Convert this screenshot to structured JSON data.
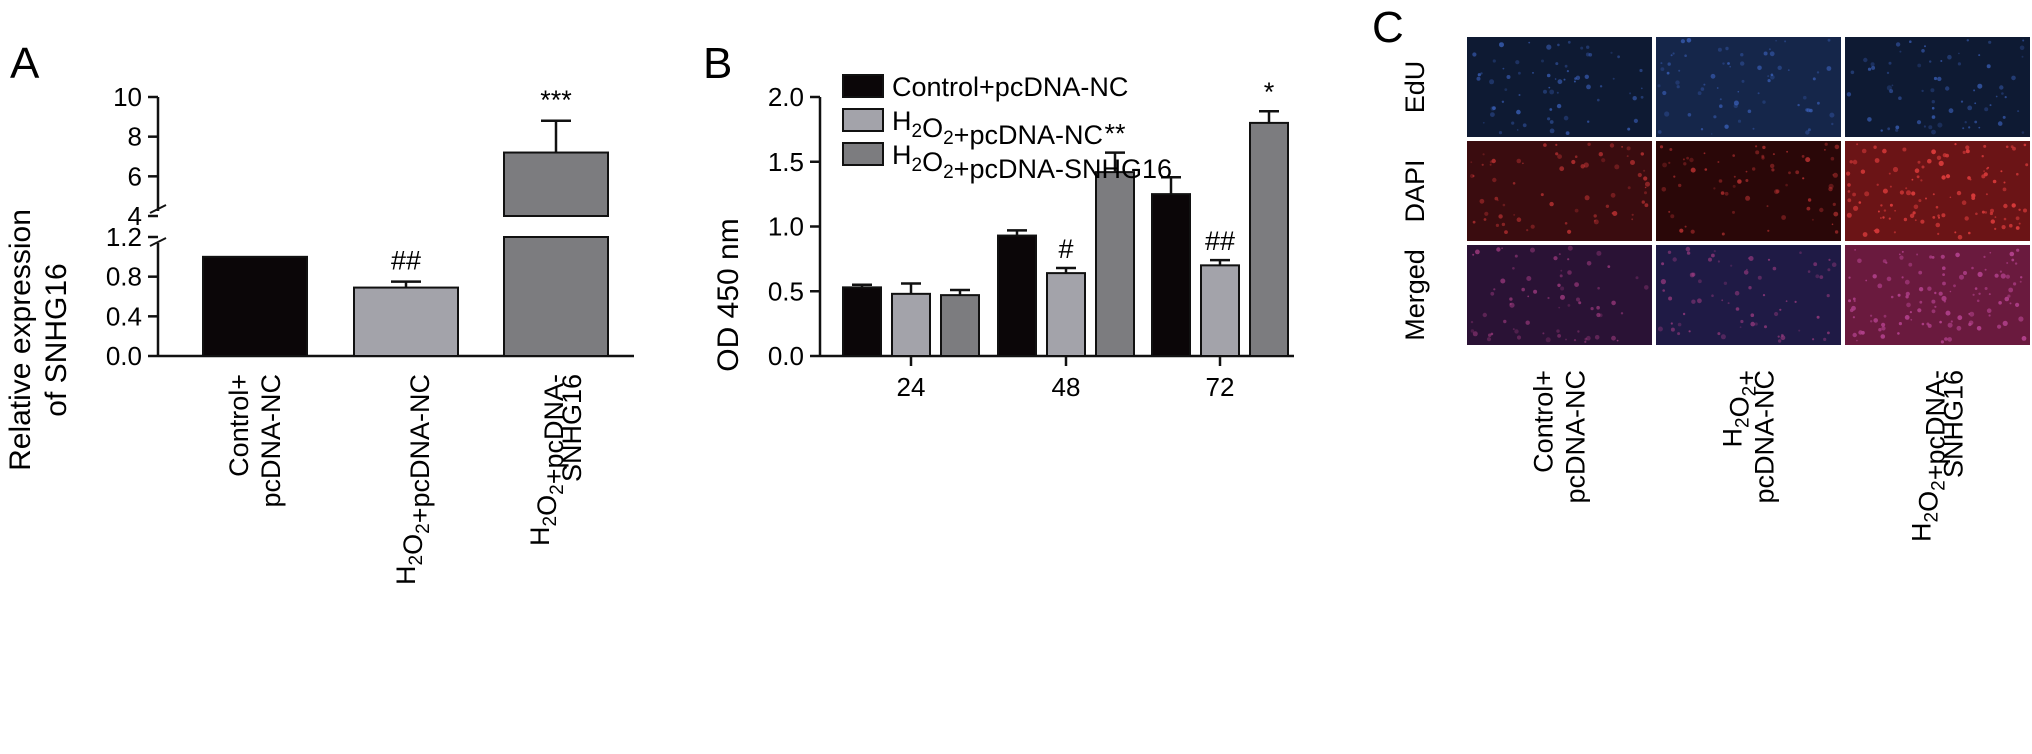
{
  "panels": {
    "a": {
      "letter": "A"
    },
    "b": {
      "letter": "B"
    },
    "c": {
      "letter": "C"
    }
  },
  "chart_data": [
    {
      "panel": "A",
      "type": "bar",
      "ylabel_line1": "Relative expression",
      "ylabel_line2": "of SNHG16",
      "axis_break": true,
      "ylim_lower": [
        0,
        1.2
      ],
      "ylim_upper": [
        4,
        10
      ],
      "yticks_lower": [
        "0.0",
        "0.4",
        "0.8",
        "1.2"
      ],
      "yticks_upper": [
        "4",
        "6",
        "8",
        "10"
      ],
      "categories": [
        {
          "line1": "Control+",
          "line2": "pcDNA-NC",
          "subscripts": false
        },
        {
          "line1": "H2O2+pcDNA-NC",
          "line2": "",
          "subscripts": true
        },
        {
          "line1": "H2O2+pcDNA-",
          "line2": "SNHG16",
          "subscripts": true
        }
      ],
      "values": [
        1.0,
        0.69,
        7.2
      ],
      "errors": [
        0,
        0.06,
        1.6
      ],
      "colors": [
        "#0b0608",
        "#a3a3aa",
        "#7c7c7f"
      ],
      "significance": [
        "",
        "##",
        "***"
      ]
    },
    {
      "panel": "B",
      "type": "bar",
      "ylabel": "OD 450 nm",
      "ylim": [
        0,
        2.0
      ],
      "yticks": [
        "0.0",
        "0.5",
        "1.0",
        "1.5",
        "2.0"
      ],
      "categories": [
        "24",
        "48",
        "72"
      ],
      "legend_position": "top-left",
      "series": [
        {
          "name": "Control+pcDNA-NC",
          "values": [
            0.53,
            0.93,
            1.25
          ],
          "errors": [
            0.02,
            0.04,
            0.13
          ],
          "color": "#0b0608",
          "significance": [
            "",
            "",
            ""
          ]
        },
        {
          "name": "H2O2+pcDNA-NC",
          "values": [
            0.48,
            0.64,
            0.7
          ],
          "errors": [
            0.08,
            0.04,
            0.04
          ],
          "color": "#a3a3aa",
          "significance": [
            "",
            "#",
            "##"
          ]
        },
        {
          "name": "H2O2+pcDNA-SNHG16",
          "values": [
            0.47,
            1.42,
            1.8
          ],
          "errors": [
            0.04,
            0.15,
            0.09
          ],
          "color": "#7c7c7f",
          "significance": [
            "",
            "**",
            "*"
          ]
        }
      ]
    }
  ],
  "micrographs": {
    "rows": [
      "EdU",
      "DAPI",
      "Merged"
    ],
    "columns": [
      {
        "line1": "Control+",
        "line2": "pcDNA-NC",
        "subscripts": false
      },
      {
        "line1": "H2O2+",
        "line2": "pcDNA-NC",
        "subscripts": true
      },
      {
        "line1": "H2O2+pcDNA-",
        "line2": "SNHG16",
        "subscripts": true
      }
    ],
    "tiles": [
      [
        "#0e1a33",
        "#15264a",
        "#0e1a33"
      ],
      [
        "#3a0c0f",
        "#2a0708",
        "#6b1416"
      ],
      [
        "#2a1235",
        "#1f1a45",
        "#6a1a3e"
      ]
    ],
    "dot_colors": {
      "EdU": "#3f68c9",
      "DAPI": "#d83a3a",
      "Merged": "#b0408a"
    }
  }
}
